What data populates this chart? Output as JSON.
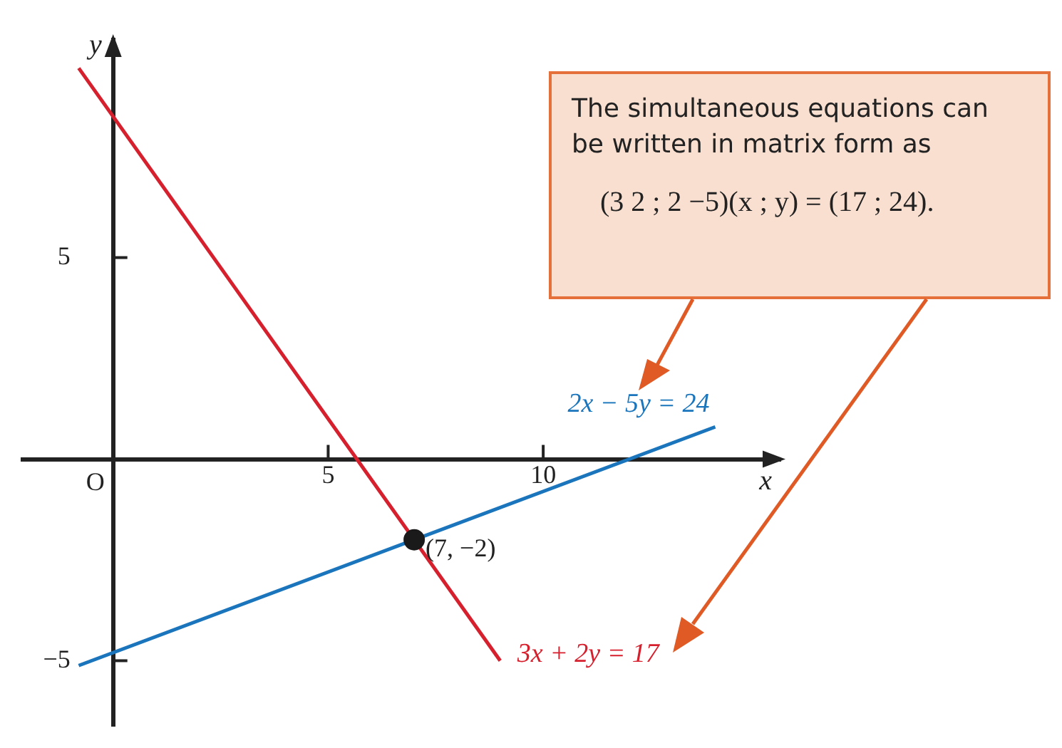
{
  "chart_data": {
    "type": "line",
    "xlabel": "x",
    "ylabel": "y",
    "xlim": [
      -2.1,
      15.5
    ],
    "ylim": [
      -6.6,
      10.4
    ],
    "xticks": [
      5,
      10
    ],
    "yticks": [
      {
        "value": -5,
        "label": "−5"
      },
      5
    ],
    "grid": false,
    "legend": false,
    "line_style": "solid",
    "series": [
      {
        "name": "3x + 2y = 17",
        "color": "#d7202e",
        "x": [
          -0.8,
          9
        ],
        "values": [
          9.7,
          -5
        ]
      },
      {
        "name": "2x − 5y = 24",
        "color": "#1a75bc",
        "x": [
          -0.8,
          14
        ],
        "values": [
          -5.12,
          0.8
        ]
      },
      {
        "color": "#1a1a1a",
        "type": "scatter",
        "marker": "circle",
        "x": [
          7
        ],
        "values": [
          -2
        ]
      }
    ],
    "annotations": [
      {
        "text": "(7, −2)",
        "x": 7,
        "y": -2
      },
      "O",
      "The simultaneous equations can be written in matrix form as",
      "(3  2 ; 2  −5)(x ; y) = (17 ; 24)."
    ]
  }
}
